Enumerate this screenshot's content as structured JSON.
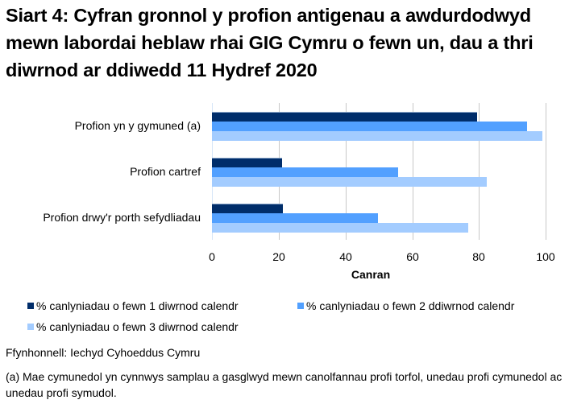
{
  "title": "Siart 4: Cyfran gronnol y profion antigenau a awdurdodwyd mewn labordai heblaw rhai GIG Cymru o fewn un, dau a thri diwrnod ar ddiwedd 11 Hydref 2020",
  "source": "Ffynhonnell: Iechyd Cyhoeddus Cymru",
  "note": "(a) Mae cymunedol yn cynnwys samplau a gasglwyd mewn canolfannau profi torfol, unedau profi cymunedol ac unedau profi symudol.",
  "colors": {
    "series1": "#002d6a",
    "series2": "#52a0ff",
    "series3": "#a3ccff"
  },
  "chart_data": {
    "type": "bar",
    "orientation": "horizontal",
    "title": "Siart 4: Cyfran gronnol y profion antigenau a awdurdodwyd mewn labordai heblaw rhai GIG Cymru o fewn un, dau a thri diwrnod ar ddiwedd 11 Hydref 2020",
    "categories": [
      "Profion yn y gymuned (a)",
      "Profion cartref",
      "Profion drwy'r porth sefydliadau"
    ],
    "series": [
      {
        "name": "% canlyniadau o fewn 1 diwrnod calendr",
        "values": [
          79.5,
          20.9,
          21.3
        ]
      },
      {
        "name": "% canlyniadau o fewn 2 ddiwrnod calendr",
        "values": [
          94.4,
          55.9,
          49.8
        ]
      },
      {
        "name": "% canlyniadau o fewn 3 diwrnod calendr",
        "values": [
          99.0,
          82.3,
          76.8
        ]
      }
    ],
    "xlabel": "Canran",
    "ylabel": "",
    "xlim": [
      0,
      100
    ],
    "xticks": [
      "0",
      "20",
      "40",
      "60",
      "80",
      "100"
    ],
    "grid": true,
    "legend_position": "bottom"
  }
}
